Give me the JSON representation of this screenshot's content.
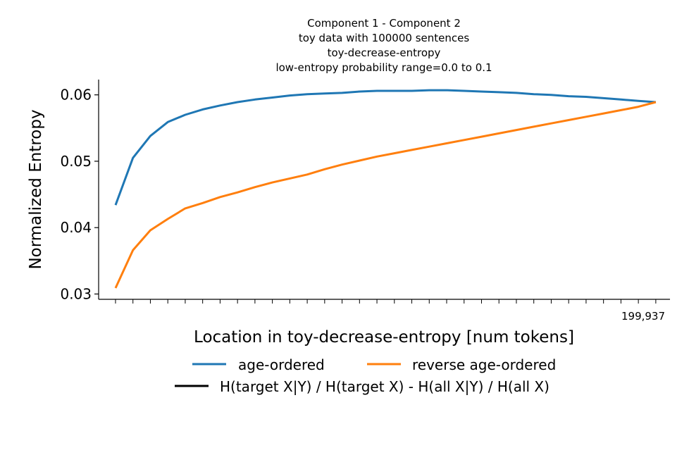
{
  "chart_data": {
    "type": "line",
    "title_lines": [
      "Component 1 - Component 2",
      "toy data with 100000 sentences",
      "toy-decrease-entropy",
      "low-entropy probability range=0.0 to 0.1"
    ],
    "xlabel": "Location in toy-decrease-entropy [num tokens]",
    "ylabel": "Normalized Entropy",
    "xlim": [
      -6249,
      205184
    ],
    "ylim": [
      0.0292,
      0.0623
    ],
    "x_tick_count": 32,
    "x_tick_step": 6449.58,
    "x_tick_label": "199,937",
    "x_tick_label_value": 199937,
    "y_ticks": [
      0.03,
      0.04,
      0.05,
      0.06
    ],
    "y_tick_labels": [
      "0.03",
      "0.04",
      "0.05",
      "0.06"
    ],
    "series": [
      {
        "name": "age-ordered",
        "color": "#1f77b4",
        "values": [
          0.0434,
          0.0505,
          0.0538,
          0.0559,
          0.057,
          0.0578,
          0.0584,
          0.0589,
          0.0593,
          0.0596,
          0.0599,
          0.0601,
          0.0602,
          0.0603,
          0.0605,
          0.0606,
          0.0606,
          0.0606,
          0.0607,
          0.0607,
          0.0606,
          0.0605,
          0.0604,
          0.0603,
          0.0601,
          0.06,
          0.0598,
          0.0597,
          0.0595,
          0.0593,
          0.0591,
          0.0589
        ]
      },
      {
        "name": "reverse age-ordered",
        "color": "#ff7f0e",
        "values": [
          0.0309,
          0.0366,
          0.0396,
          0.0413,
          0.0429,
          0.0437,
          0.0446,
          0.0453,
          0.0461,
          0.0468,
          0.0474,
          0.048,
          0.0488,
          0.0495,
          0.0501,
          0.0507,
          0.0512,
          0.0517,
          0.0522,
          0.0527,
          0.0532,
          0.0537,
          0.0542,
          0.0547,
          0.0552,
          0.0557,
          0.0562,
          0.0567,
          0.0572,
          0.0577,
          0.0582,
          0.0589
        ]
      }
    ],
    "legend": [
      {
        "label": "age-ordered",
        "color": "#1f77b4"
      },
      {
        "label": "reverse age-ordered",
        "color": "#ff7f0e"
      },
      {
        "label": "H(target X|Y) / H(target X) - H(all X|Y) / H(all X)",
        "color": "#000000"
      }
    ],
    "legend_position": "below"
  }
}
